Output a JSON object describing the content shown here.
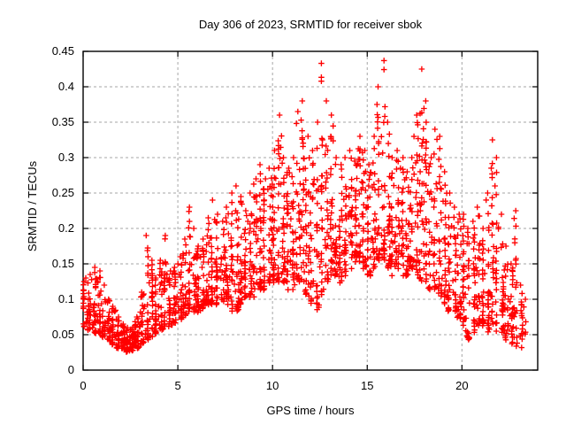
{
  "figure": {
    "background_color": "#ffffff",
    "text_color": "#000000"
  },
  "chart_data": {
    "type": "scatter",
    "title": "Day 306 of 2023, SRMTID for receiver sbok",
    "xlabel": "GPS time / hours",
    "ylabel": "SRMTID / TECUs",
    "xlim": [
      0,
      24
    ],
    "ylim": [
      0,
      0.45
    ],
    "grid": true,
    "legend": "none",
    "marker": "plus",
    "marker_color": "#ff0000",
    "grid_color": "#a6a6a6",
    "axis_color": "#000000",
    "xticks": [
      {
        "v": 0,
        "label": "0"
      },
      {
        "v": 5,
        "label": "5"
      },
      {
        "v": 10,
        "label": "10"
      },
      {
        "v": 15,
        "label": "15"
      },
      {
        "v": 20,
        "label": "20"
      }
    ],
    "yticks": [
      {
        "v": 0.0,
        "label": "0"
      },
      {
        "v": 0.05,
        "label": "0.05"
      },
      {
        "v": 0.1,
        "label": "0.1"
      },
      {
        "v": 0.15,
        "label": "0.15"
      },
      {
        "v": 0.2,
        "label": "0.2"
      },
      {
        "v": 0.25,
        "label": "0.25"
      },
      {
        "v": 0.3,
        "label": "0.3"
      },
      {
        "v": 0.35,
        "label": "0.35"
      },
      {
        "v": 0.4,
        "label": "0.4"
      },
      {
        "v": 0.45,
        "label": "0.45"
      }
    ],
    "series_name": "SRMTID",
    "bin_format": [
      "hour_center",
      "min_tecu",
      "max_tecu",
      "point_count"
    ],
    "envelope_bins": [
      [
        0.1,
        0.06,
        0.13,
        22
      ],
      [
        0.35,
        0.055,
        0.135,
        26
      ],
      [
        0.6,
        0.05,
        0.145,
        26
      ],
      [
        0.85,
        0.05,
        0.14,
        24
      ],
      [
        1.1,
        0.045,
        0.12,
        22
      ],
      [
        1.35,
        0.04,
        0.1,
        22
      ],
      [
        1.6,
        0.035,
        0.09,
        24
      ],
      [
        1.85,
        0.03,
        0.075,
        26
      ],
      [
        2.1,
        0.028,
        0.065,
        28
      ],
      [
        2.35,
        0.025,
        0.06,
        30
      ],
      [
        2.6,
        0.027,
        0.06,
        28
      ],
      [
        2.85,
        0.03,
        0.075,
        26
      ],
      [
        3.1,
        0.035,
        0.11,
        24
      ],
      [
        3.35,
        0.04,
        0.19,
        24
      ],
      [
        3.6,
        0.045,
        0.155,
        22
      ],
      [
        3.85,
        0.05,
        0.13,
        24
      ],
      [
        4.1,
        0.055,
        0.155,
        24
      ],
      [
        4.35,
        0.06,
        0.19,
        22
      ],
      [
        4.6,
        0.06,
        0.14,
        22
      ],
      [
        4.85,
        0.065,
        0.145,
        24
      ],
      [
        5.1,
        0.07,
        0.16,
        24
      ],
      [
        5.35,
        0.075,
        0.185,
        22
      ],
      [
        5.6,
        0.08,
        0.23,
        24
      ],
      [
        5.85,
        0.08,
        0.2,
        22
      ],
      [
        6.1,
        0.08,
        0.175,
        24
      ],
      [
        6.35,
        0.085,
        0.185,
        22
      ],
      [
        6.6,
        0.09,
        0.215,
        24
      ],
      [
        6.85,
        0.09,
        0.24,
        24
      ],
      [
        7.1,
        0.09,
        0.22,
        24
      ],
      [
        7.35,
        0.095,
        0.21,
        22
      ],
      [
        7.6,
        0.09,
        0.23,
        24
      ],
      [
        7.85,
        0.08,
        0.25,
        24
      ],
      [
        8.1,
        0.08,
        0.26,
        26
      ],
      [
        8.35,
        0.09,
        0.245,
        24
      ],
      [
        8.6,
        0.1,
        0.225,
        24
      ],
      [
        8.85,
        0.1,
        0.25,
        24
      ],
      [
        9.1,
        0.1,
        0.27,
        26
      ],
      [
        9.35,
        0.11,
        0.29,
        26
      ],
      [
        9.6,
        0.11,
        0.27,
        24
      ],
      [
        9.85,
        0.12,
        0.285,
        26
      ],
      [
        10.1,
        0.12,
        0.31,
        26
      ],
      [
        10.35,
        0.12,
        0.36,
        26
      ],
      [
        10.6,
        0.12,
        0.3,
        26
      ],
      [
        10.85,
        0.11,
        0.285,
        26
      ],
      [
        11.1,
        0.11,
        0.3,
        26
      ],
      [
        11.35,
        0.12,
        0.365,
        28
      ],
      [
        11.6,
        0.12,
        0.38,
        28
      ],
      [
        11.85,
        0.1,
        0.33,
        26
      ],
      [
        12.1,
        0.09,
        0.31,
        24
      ],
      [
        12.35,
        0.08,
        0.35,
        24
      ],
      [
        12.6,
        0.1,
        0.433,
        26
      ],
      [
        12.85,
        0.12,
        0.38,
        26
      ],
      [
        13.1,
        0.13,
        0.36,
        26
      ],
      [
        13.35,
        0.13,
        0.3,
        24
      ],
      [
        13.6,
        0.12,
        0.29,
        24
      ],
      [
        13.85,
        0.13,
        0.3,
        24
      ],
      [
        14.1,
        0.14,
        0.31,
        26
      ],
      [
        14.35,
        0.15,
        0.295,
        24
      ],
      [
        14.6,
        0.15,
        0.33,
        24
      ],
      [
        14.85,
        0.14,
        0.31,
        26
      ],
      [
        15.1,
        0.13,
        0.29,
        24
      ],
      [
        15.35,
        0.14,
        0.33,
        24
      ],
      [
        15.6,
        0.15,
        0.4,
        26
      ],
      [
        15.85,
        0.15,
        0.437,
        28
      ],
      [
        16.1,
        0.14,
        0.35,
        26
      ],
      [
        16.35,
        0.13,
        0.3,
        24
      ],
      [
        16.6,
        0.14,
        0.31,
        24
      ],
      [
        16.85,
        0.13,
        0.3,
        24
      ],
      [
        17.1,
        0.13,
        0.28,
        24
      ],
      [
        17.35,
        0.14,
        0.3,
        24
      ],
      [
        17.6,
        0.13,
        0.36,
        26
      ],
      [
        17.85,
        0.12,
        0.425,
        28
      ],
      [
        18.1,
        0.12,
        0.38,
        26
      ],
      [
        18.35,
        0.11,
        0.3,
        24
      ],
      [
        18.6,
        0.11,
        0.34,
        24
      ],
      [
        18.85,
        0.1,
        0.33,
        26
      ],
      [
        19.1,
        0.09,
        0.28,
        24
      ],
      [
        19.35,
        0.08,
        0.25,
        24
      ],
      [
        19.6,
        0.08,
        0.23,
        24
      ],
      [
        19.85,
        0.07,
        0.22,
        24
      ],
      [
        20.1,
        0.06,
        0.22,
        24
      ],
      [
        20.35,
        0.04,
        0.2,
        24
      ],
      [
        20.6,
        0.05,
        0.21,
        24
      ],
      [
        20.85,
        0.06,
        0.23,
        24
      ],
      [
        21.1,
        0.06,
        0.2,
        24
      ],
      [
        21.35,
        0.05,
        0.25,
        24
      ],
      [
        21.6,
        0.06,
        0.325,
        26
      ],
      [
        21.85,
        0.05,
        0.3,
        24
      ],
      [
        22.1,
        0.05,
        0.22,
        24
      ],
      [
        22.35,
        0.04,
        0.175,
        22
      ],
      [
        22.6,
        0.035,
        0.15,
        22
      ],
      [
        22.85,
        0.03,
        0.225,
        20
      ],
      [
        23.1,
        0.03,
        0.12,
        16
      ],
      [
        23.35,
        0.05,
        0.1,
        6
      ]
    ]
  }
}
